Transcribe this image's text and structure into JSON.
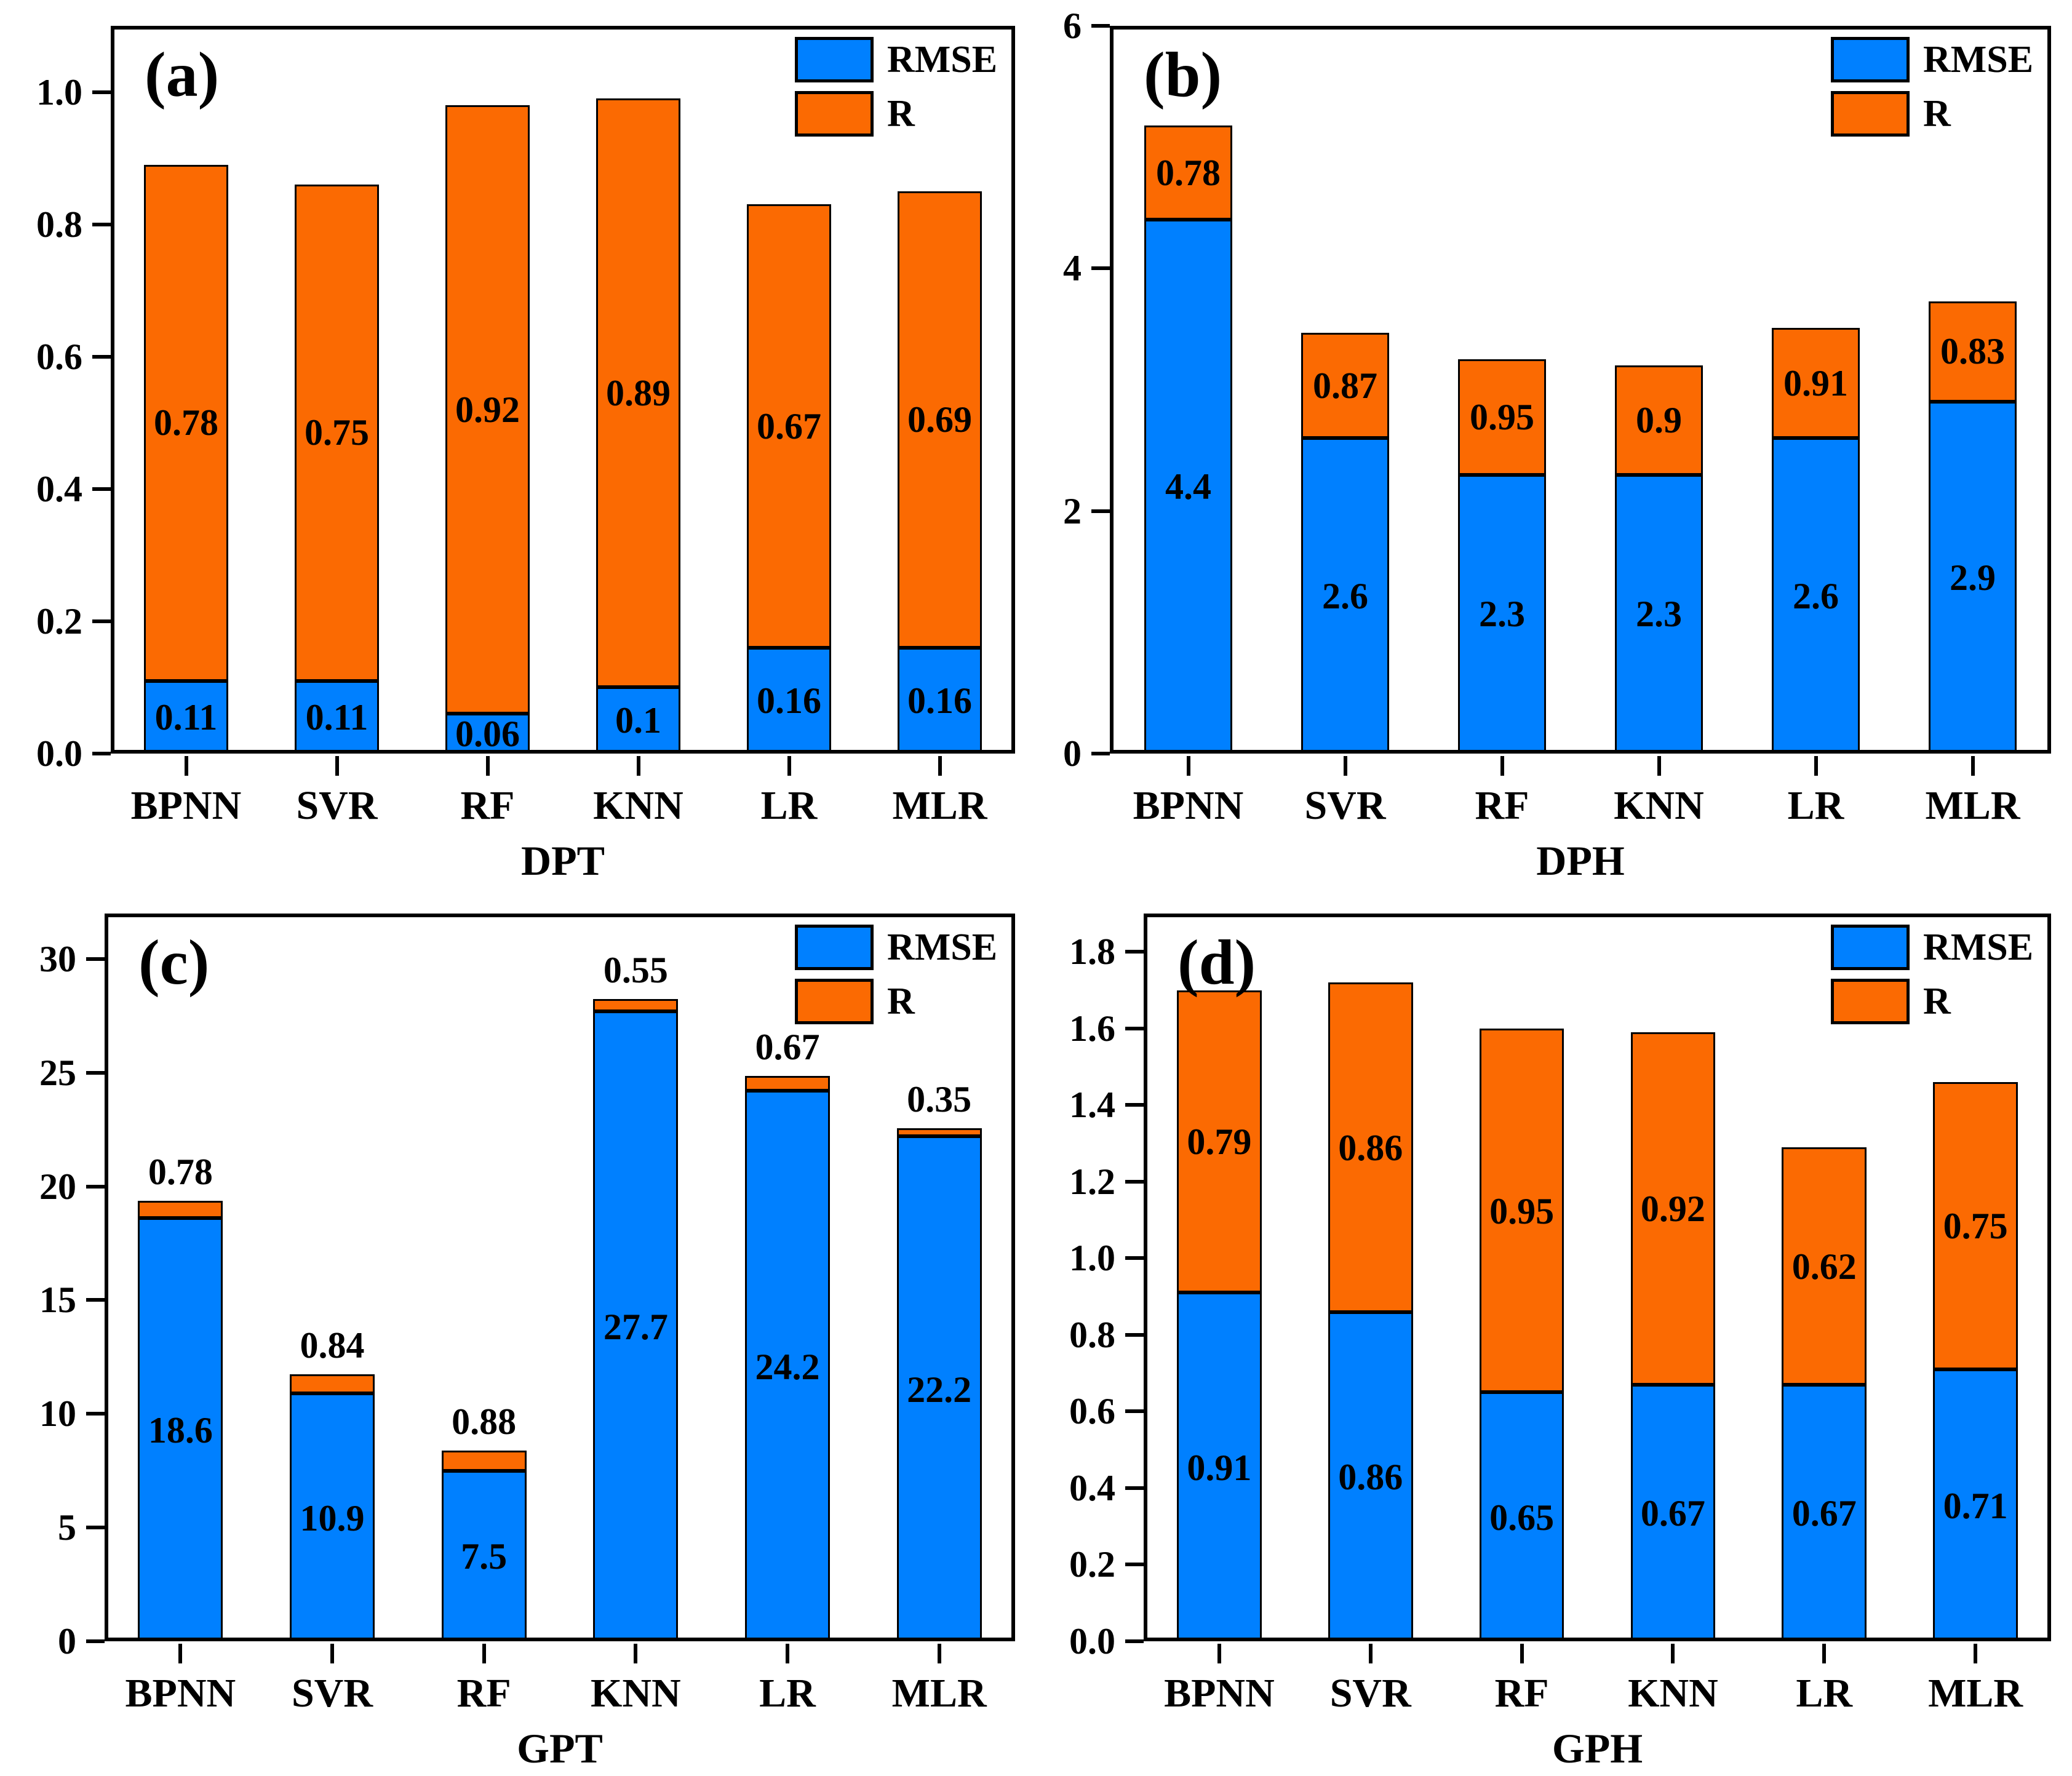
{
  "figure": {
    "description": "Four stacked bar chart panels comparing RMSE and R of six models"
  },
  "legend": {
    "rmse_label": "RMSE",
    "r_label": "R"
  },
  "colors": {
    "rmse_blue": "#0080FF",
    "r_orange": "#FB6A02",
    "bar_border": "#000000",
    "axis": "#000000",
    "background": "#FFFFFF"
  },
  "chart_data": [
    {
      "type": "bar",
      "panel_letter": "(a)",
      "xlabel": "DPT",
      "categories": [
        "BPNN",
        "SVR",
        "RF",
        "KNN",
        "LR",
        "MLR"
      ],
      "series": [
        {
          "name": "RMSE",
          "values": [
            0.11,
            0.11,
            0.06,
            0.1,
            0.16,
            0.16
          ]
        },
        {
          "name": "R",
          "values": [
            0.78,
            0.75,
            0.92,
            0.89,
            0.67,
            0.69
          ]
        }
      ],
      "stacked": true,
      "ylim": [
        0,
        1.1
      ],
      "yticks": [
        0.0,
        0.2,
        0.4,
        0.6,
        0.8,
        1.0
      ],
      "ytick_decimals": 1,
      "r_label_position": "inside",
      "legend_position": "top-right",
      "grid": false
    },
    {
      "type": "bar",
      "panel_letter": "(b)",
      "xlabel": "DPH",
      "categories": [
        "BPNN",
        "SVR",
        "RF",
        "KNN",
        "LR",
        "MLR"
      ],
      "series": [
        {
          "name": "RMSE",
          "values": [
            4.4,
            2.6,
            2.3,
            2.3,
            2.6,
            2.9
          ]
        },
        {
          "name": "R",
          "values": [
            0.78,
            0.87,
            0.95,
            0.9,
            0.91,
            0.83
          ]
        }
      ],
      "stacked": true,
      "ylim": [
        0,
        6
      ],
      "yticks": [
        0,
        2,
        4,
        6
      ],
      "ytick_decimals": 0,
      "r_label_position": "inside",
      "legend_position": "top-right",
      "grid": false
    },
    {
      "type": "bar",
      "panel_letter": "(c)",
      "xlabel": "GPT",
      "categories": [
        "BPNN",
        "SVR",
        "RF",
        "KNN",
        "LR",
        "MLR"
      ],
      "series": [
        {
          "name": "RMSE",
          "values": [
            18.6,
            10.9,
            7.5,
            27.7,
            24.2,
            22.2
          ]
        },
        {
          "name": "R",
          "values": [
            0.78,
            0.84,
            0.88,
            0.55,
            0.67,
            0.35
          ]
        }
      ],
      "stacked": true,
      "ylim": [
        0,
        32
      ],
      "yticks": [
        0,
        5,
        10,
        15,
        20,
        25,
        30
      ],
      "ytick_decimals": 0,
      "r_label_position": "above",
      "legend_position": "top-right",
      "grid": false
    },
    {
      "type": "bar",
      "panel_letter": "(d)",
      "xlabel": "GPH",
      "categories": [
        "BPNN",
        "SVR",
        "RF",
        "KNN",
        "LR",
        "MLR"
      ],
      "series": [
        {
          "name": "RMSE",
          "values": [
            0.91,
            0.86,
            0.65,
            0.67,
            0.67,
            0.71
          ]
        },
        {
          "name": "R",
          "values": [
            0.79,
            0.86,
            0.95,
            0.92,
            0.62,
            0.75
          ]
        }
      ],
      "stacked": true,
      "ylim": [
        0,
        1.9
      ],
      "yticks": [
        0.0,
        0.2,
        0.4,
        0.6,
        0.8,
        1.0,
        1.2,
        1.4,
        1.6,
        1.8
      ],
      "ytick_decimals": 1,
      "r_label_position": "inside",
      "legend_position": "top-right",
      "grid": false
    }
  ]
}
